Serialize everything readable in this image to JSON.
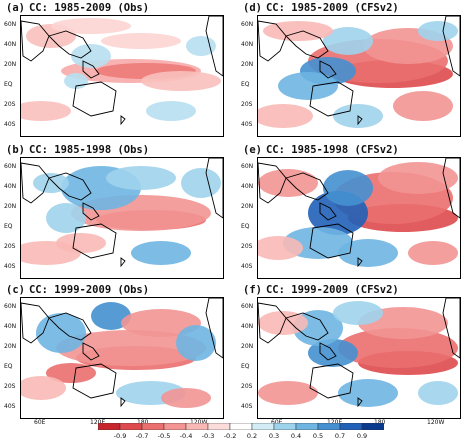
{
  "panels": [
    {
      "tag": "(a)",
      "title": "CC: 1985-2009 (Obs)",
      "pattern": "obs_a"
    },
    {
      "tag": "(d)",
      "title": "CC: 1985-2009 (CFSv2)",
      "pattern": "cfs_d"
    },
    {
      "tag": "(b)",
      "title": "CC: 1985-1998 (Obs)",
      "pattern": "obs_b"
    },
    {
      "tag": "(e)",
      "title": "CC: 1985-1998 (CFSv2)",
      "pattern": "cfs_e"
    },
    {
      "tag": "(c)",
      "title": "CC: 1999-2009 (Obs)",
      "pattern": "obs_c"
    },
    {
      "tag": "(f)",
      "title": "CC: 1999-2009 (CFSv2)",
      "pattern": "cfs_f"
    }
  ],
  "lat_labels": [
    "60N",
    "40N",
    "20N",
    "EQ",
    "20S",
    "40S"
  ],
  "lon_labels": [
    "60E",
    "120E",
    "180",
    "120W"
  ],
  "colorbar": {
    "ticks": [
      "-0.9",
      "-0.7",
      "-0.5",
      "-0.4",
      "-0.3",
      "-0.2",
      "0.2",
      "0.3",
      "0.4",
      "0.5",
      "0.7",
      "0.9"
    ],
    "colors": [
      "#c8242b",
      "#de4a4d",
      "#ea6f6e",
      "#f29593",
      "#f8b9b6",
      "#fcdcda",
      "#ffffff",
      "#d3ecf6",
      "#9ed3ec",
      "#6fb5e2",
      "#4590d0",
      "#2060b8",
      "#0a3a8e"
    ]
  }
}
